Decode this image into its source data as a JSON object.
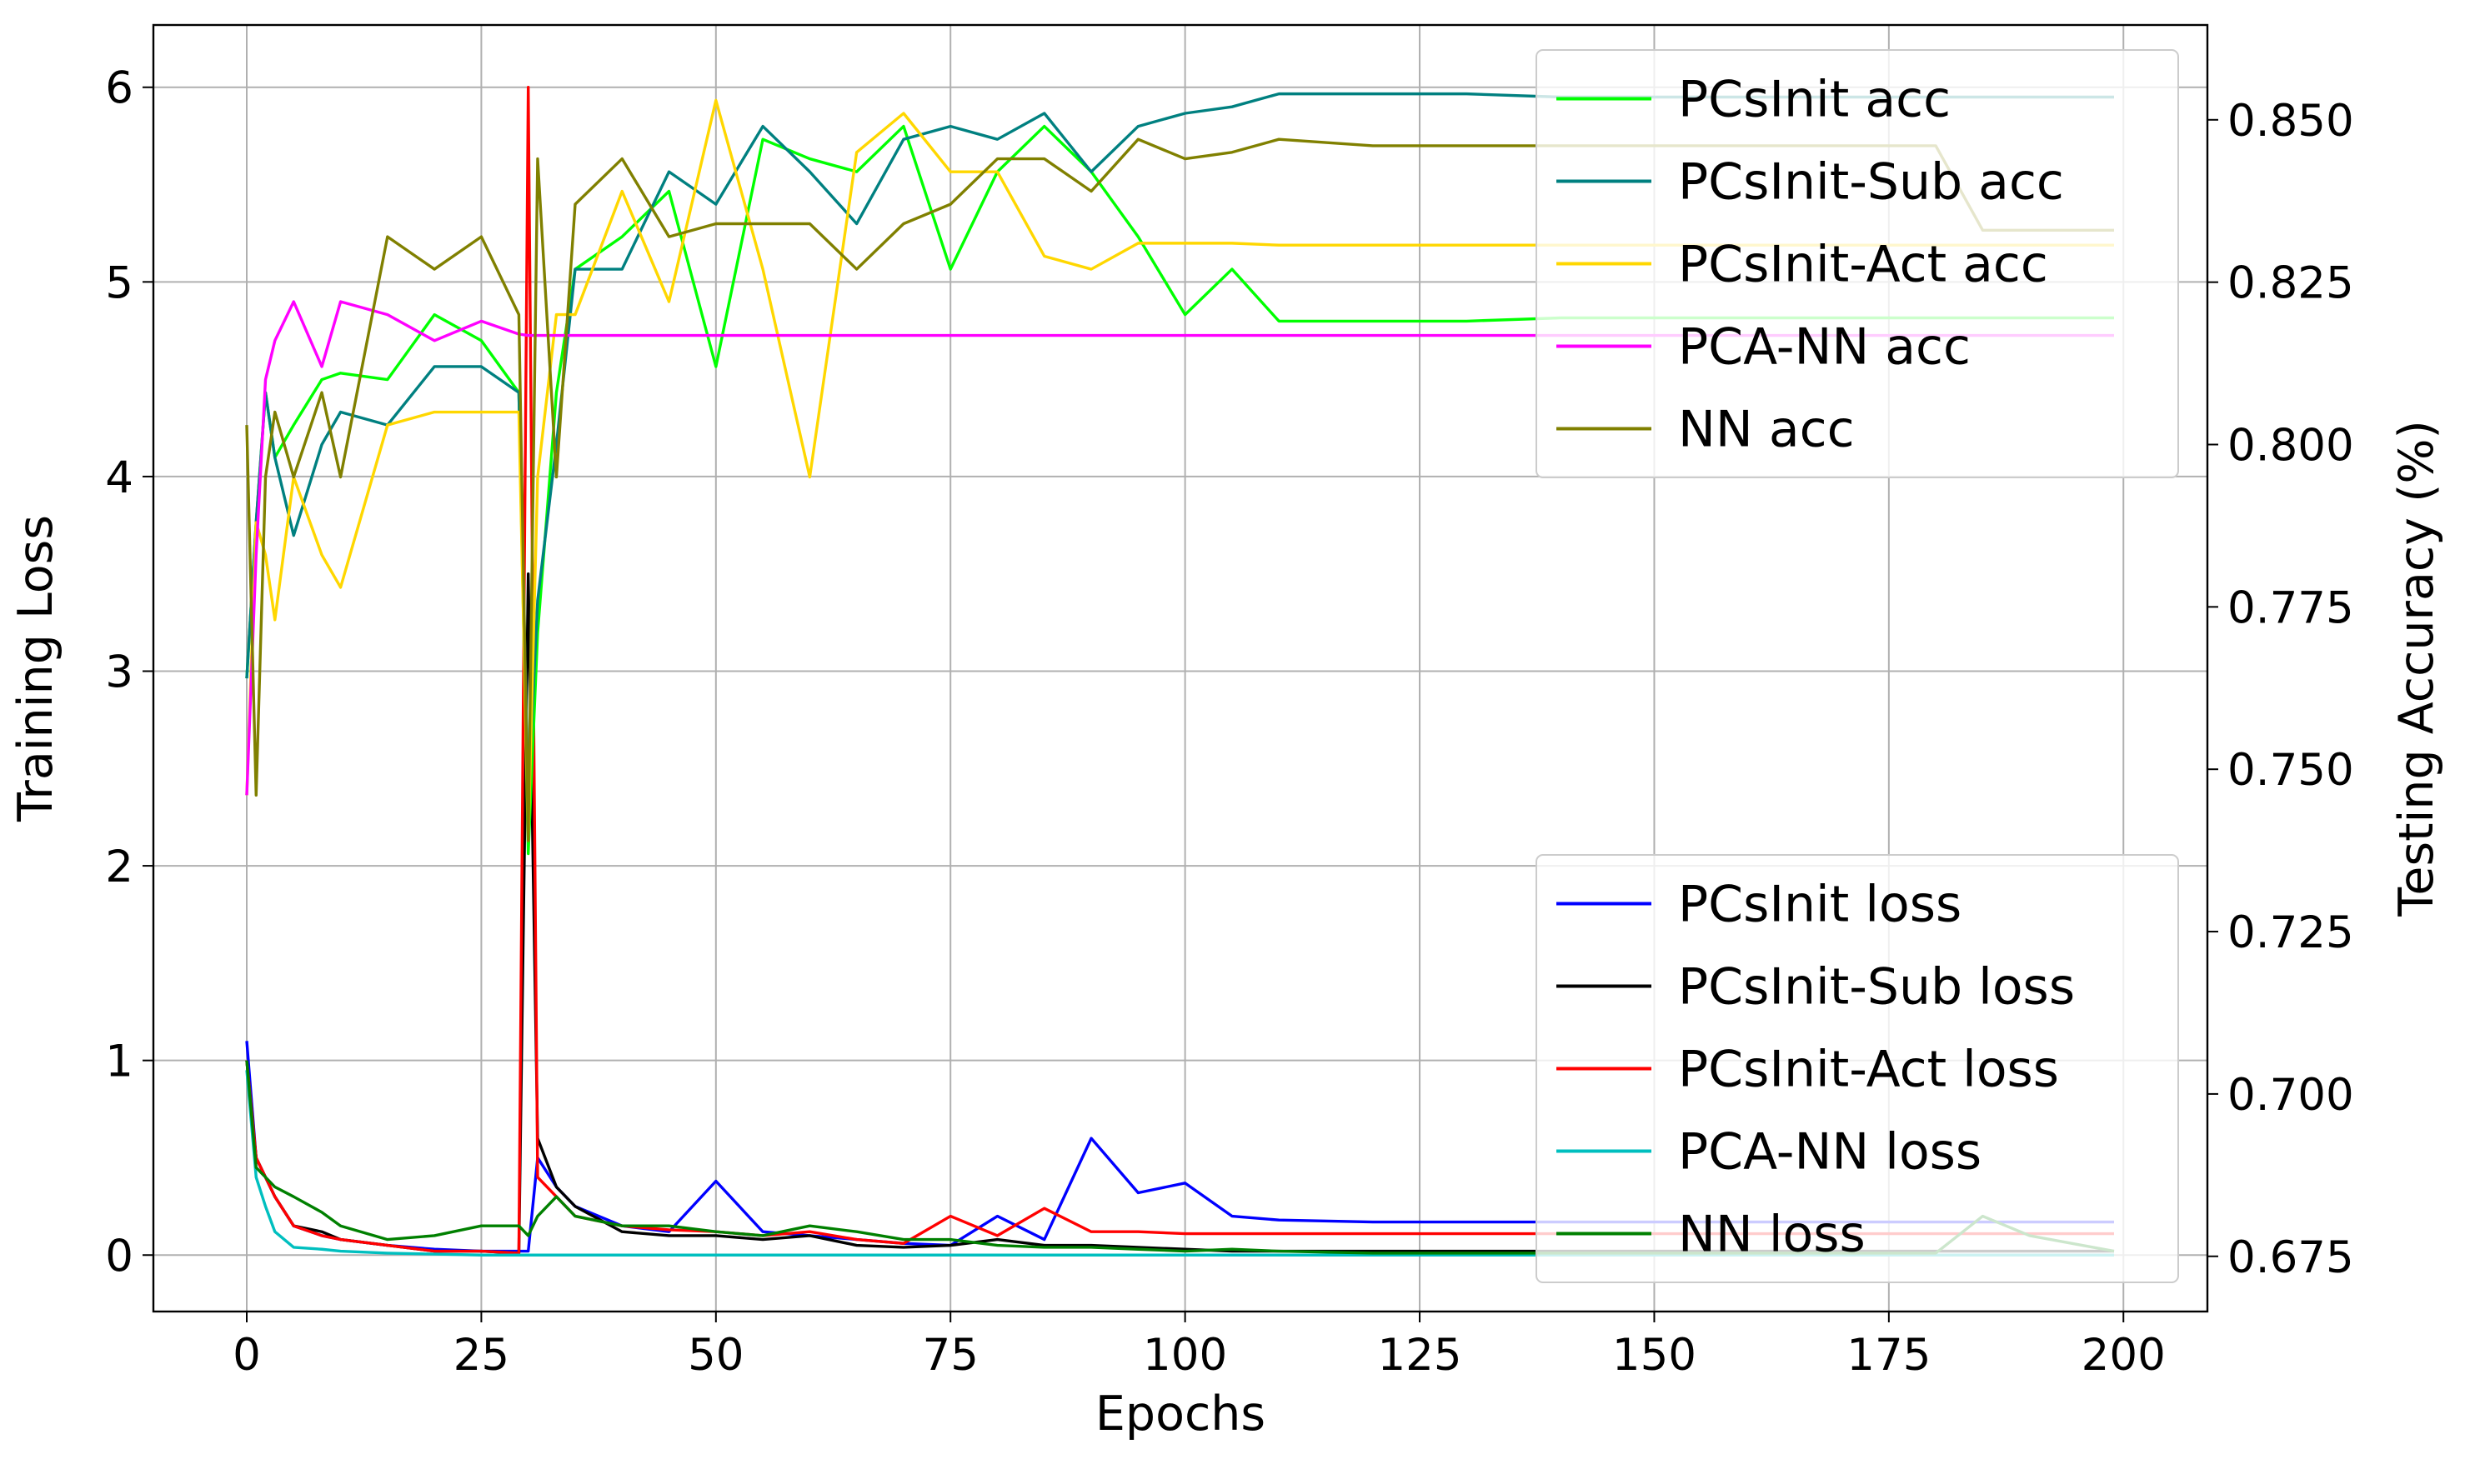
{
  "chart_data": {
    "type": "line",
    "x_label": "Epochs",
    "y_label": "Training Loss",
    "y2_label": "Testing Accuracy (%)",
    "x": [
      0,
      1,
      2,
      3,
      5,
      8,
      10,
      15,
      20,
      25,
      29,
      30,
      31,
      33,
      35,
      40,
      45,
      50,
      55,
      60,
      65,
      70,
      75,
      80,
      85,
      90,
      95,
      100,
      105,
      110,
      120,
      130,
      140,
      150,
      160,
      170,
      180,
      185,
      190,
      199
    ],
    "xlim": [
      -9.95,
      208.95
    ],
    "xticks": [
      0,
      25,
      50,
      75,
      100,
      125,
      150,
      175,
      200
    ],
    "ylim": [
      -0.29,
      6.32
    ],
    "yticks": [
      0,
      1,
      2,
      3,
      4,
      5,
      6
    ],
    "y2lim": [
      0.6665,
      0.8646
    ],
    "y2ticks": [
      0.675,
      {
        "value": 0.7,
        "label": "0.700"
      },
      0.725,
      {
        "value": 0.75,
        "label": "0.750"
      },
      0.775,
      {
        "value": 0.8,
        "label": "0.800"
      },
      0.825,
      {
        "value": 0.85,
        "label": "0.850"
      }
    ],
    "grid": true,
    "legend_loc_y2": "upper right",
    "legend_loc": "lower right",
    "series": [
      {
        "name": "PCsInit acc",
        "color": "#00ff00",
        "axis": "y2",
        "values": [
          0.764,
          0.788,
          0.808,
          0.798,
          0.803,
          0.81,
          0.811,
          0.81,
          0.82,
          0.816,
          0.808,
          0.737,
          0.771,
          0.808,
          0.827,
          0.832,
          0.839,
          0.812,
          0.847,
          0.844,
          0.842,
          0.849,
          0.827,
          0.842,
          0.849,
          0.842,
          0.832,
          0.82,
          0.827,
          0.819,
          0.819,
          0.819,
          0.8195,
          0.8195,
          0.8195,
          0.8195,
          0.8195,
          0.8195,
          0.8195,
          0.8195
        ]
      },
      {
        "name": "PCsInit-Sub acc",
        "color": "#008080",
        "axis": "y2",
        "values": [
          0.764,
          0.788,
          0.808,
          0.798,
          0.786,
          0.8,
          0.805,
          0.803,
          0.812,
          0.812,
          0.808,
          0.746,
          0.776,
          0.8,
          0.827,
          0.827,
          0.842,
          0.837,
          0.849,
          0.842,
          0.834,
          0.847,
          0.849,
          0.847,
          0.851,
          0.842,
          0.849,
          0.851,
          0.852,
          0.854,
          0.854,
          0.854,
          0.8535,
          0.8535,
          0.8535,
          0.8535,
          0.8535,
          0.8535,
          0.8535,
          0.8535
        ]
      },
      {
        "name": "PCsInit-Act acc",
        "color": "#ffd700",
        "axis": "y2",
        "values": [
          0.746,
          0.788,
          0.783,
          0.773,
          0.795,
          0.783,
          0.778,
          0.803,
          0.805,
          0.805,
          0.805,
          0.739,
          0.795,
          0.82,
          0.82,
          0.839,
          0.822,
          0.853,
          0.827,
          0.795,
          0.845,
          0.851,
          0.842,
          0.842,
          0.829,
          0.827,
          0.831,
          0.831,
          0.831,
          0.8307,
          0.8307,
          0.8307,
          0.8307,
          0.8307,
          0.8307,
          0.8307,
          0.8307,
          0.8307,
          0.8307,
          0.8307
        ]
      },
      {
        "name": "PCA-NN acc",
        "color": "#ff00ff",
        "axis": "y2",
        "values": [
          0.746,
          0.783,
          0.81,
          0.816,
          0.822,
          0.812,
          0.822,
          0.82,
          0.816,
          0.819,
          0.817,
          0.8168,
          0.8168,
          0.8168,
          0.8168,
          0.8168,
          0.8168,
          0.8168,
          0.8168,
          0.8168,
          0.8168,
          0.8168,
          0.8168,
          0.8168,
          0.8168,
          0.8168,
          0.8168,
          0.8168,
          0.8168,
          0.8168,
          0.8168,
          0.8168,
          0.8168,
          0.8168,
          0.8168,
          0.8168,
          0.8168,
          0.8168,
          0.8168,
          0.8168
        ]
      },
      {
        "name": "NN acc",
        "color": "#808000",
        "axis": "y2",
        "values": [
          0.803,
          0.746,
          0.795,
          0.805,
          0.795,
          0.808,
          0.795,
          0.832,
          0.827,
          0.832,
          0.82,
          0.739,
          0.844,
          0.795,
          0.837,
          0.844,
          0.832,
          0.834,
          0.834,
          0.834,
          0.827,
          0.834,
          0.837,
          0.844,
          0.844,
          0.839,
          0.847,
          0.844,
          0.845,
          0.847,
          0.846,
          0.846,
          0.846,
          0.846,
          0.846,
          0.846,
          0.846,
          0.833,
          0.833,
          0.833
        ]
      },
      {
        "name": "PCsInit loss",
        "color": "#0000ff",
        "values": [
          1.1,
          0.5,
          0.4,
          0.3,
          0.15,
          0.1,
          0.08,
          0.05,
          0.03,
          0.02,
          0.02,
          0.02,
          0.5,
          0.35,
          0.25,
          0.15,
          0.12,
          0.38,
          0.12,
          0.1,
          0.08,
          0.06,
          0.05,
          0.2,
          0.08,
          0.6,
          0.32,
          0.37,
          0.2,
          0.18,
          0.17,
          0.17,
          0.17,
          0.17,
          0.17,
          0.17,
          0.17,
          0.17,
          0.17,
          0.17
        ]
      },
      {
        "name": "PCsInit-Sub loss",
        "color": "#000000",
        "values": [
          1.0,
          0.5,
          0.4,
          0.3,
          0.15,
          0.12,
          0.08,
          0.05,
          0.02,
          0.02,
          0.01,
          3.5,
          0.6,
          0.35,
          0.25,
          0.12,
          0.1,
          0.1,
          0.08,
          0.1,
          0.05,
          0.04,
          0.05,
          0.08,
          0.05,
          0.05,
          0.04,
          0.03,
          0.02,
          0.02,
          0.02,
          0.02,
          0.02,
          0.02,
          0.02,
          0.02,
          0.02,
          0.02,
          0.02,
          0.02
        ]
      },
      {
        "name": "PCsInit-Act loss",
        "color": "#ff0000",
        "values": [
          1.0,
          0.5,
          0.4,
          0.3,
          0.15,
          0.1,
          0.08,
          0.05,
          0.02,
          0.02,
          0.01,
          6.0,
          0.4,
          0.3,
          0.2,
          0.15,
          0.13,
          0.12,
          0.1,
          0.12,
          0.08,
          0.06,
          0.2,
          0.1,
          0.24,
          0.12,
          0.12,
          0.11,
          0.11,
          0.11,
          0.11,
          0.11,
          0.11,
          0.11,
          0.11,
          0.11,
          0.11,
          0.11,
          0.11,
          0.11
        ]
      },
      {
        "name": "PCA-NN loss",
        "color": "#00bfbf",
        "values": [
          0.95,
          0.4,
          0.25,
          0.12,
          0.04,
          0.03,
          0.02,
          0.01,
          0.005,
          0,
          0,
          0,
          0,
          0,
          0,
          0,
          0,
          0,
          0,
          0,
          0,
          0,
          0,
          0,
          0,
          0,
          0,
          0,
          0,
          0,
          0,
          0,
          0,
          0,
          0,
          0,
          0,
          0,
          0,
          0
        ]
      },
      {
        "name": "NN loss",
        "color": "#008000",
        "values": [
          1.0,
          0.45,
          0.4,
          0.35,
          0.3,
          0.22,
          0.15,
          0.08,
          0.1,
          0.15,
          0.15,
          0.1,
          0.2,
          0.3,
          0.2,
          0.15,
          0.15,
          0.12,
          0.1,
          0.15,
          0.12,
          0.08,
          0.08,
          0.05,
          0.04,
          0.04,
          0.03,
          0.02,
          0.03,
          0.02,
          0.01,
          0.01,
          0.01,
          0.01,
          0.01,
          0.01,
          0.01,
          0.2,
          0.1,
          0.02
        ]
      }
    ]
  }
}
